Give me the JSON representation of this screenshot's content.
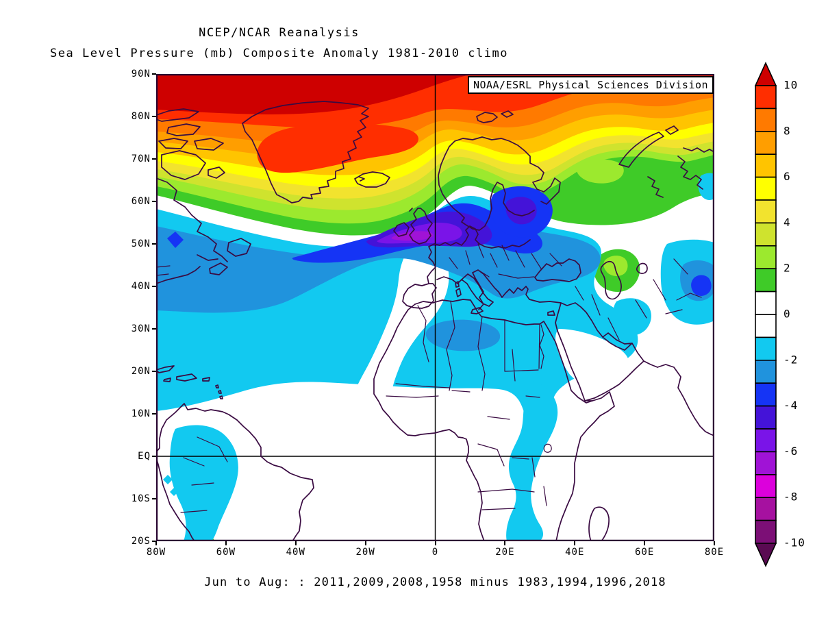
{
  "header": {
    "title": "NCEP/NCAR Reanalysis",
    "subtitle": "Sea Level Pressure (mb) Composite Anomaly 1981-2010 climo"
  },
  "credit_box": {
    "text": "NOAA/ESRL Physical Sciences Division"
  },
  "caption": {
    "text": "Jun to Aug: : 2011,2009,2008,1958 minus 1983,1994,1996,2018"
  },
  "axes": {
    "y_ticks": [
      "90N",
      "80N",
      "70N",
      "60N",
      "50N",
      "40N",
      "30N",
      "20N",
      "10N",
      "EQ",
      "10S",
      "20S"
    ],
    "x_ticks": [
      "80W",
      "60W",
      "40W",
      "20W",
      "0",
      "20E",
      "40E",
      "60E",
      "80E"
    ]
  },
  "colorbar": {
    "labels": [
      "10",
      "8",
      "6",
      "4",
      "2",
      "0",
      "-2",
      "-4",
      "-6",
      "-8",
      "-10"
    ],
    "cell_colors_top_to_bottom": [
      "#FF2E00",
      "#FF7A00",
      "#FF9E00",
      "#FFC400",
      "#FFFF00",
      "#F2E32E",
      "#CFE32E",
      "#9CE92E",
      "#3FCB28",
      "#FFFFFF",
      "#FFFFFF",
      "#12C9F0",
      "#2093DD",
      "#1534F5",
      "#4413D8",
      "#7A14E8",
      "#A013D6",
      "#DC00DC",
      "#A611A0",
      "#7C0F76"
    ],
    "arrow_top_color": "#CE0000",
    "arrow_bottom_color": "#5A0A52"
  },
  "palette": {
    "background": "#FFFFFF",
    "coastline": "#3A0B42",
    "frame": "#2B0833",
    "reference_lines": "#000000"
  },
  "chart_data": {
    "type": "heatmap",
    "subtype": "filled-contour-composite-map",
    "title": "NCEP/NCAR Reanalysis",
    "subtitle": "Sea Level Pressure (mb) Composite Anomaly 1981-2010 climo",
    "variable": "Sea Level Pressure",
    "units": "mb",
    "climatology": "1981-2010",
    "season": "Jun to Aug",
    "composite_plus_years": [
      2011,
      2009,
      2008,
      1958
    ],
    "composite_minus_years": [
      1983,
      1994,
      1996,
      2018
    ],
    "credit": "NOAA/ESRL Physical Sciences Division",
    "lat_range": [
      "20S",
      "90N"
    ],
    "lon_range": [
      "80W",
      "80E"
    ],
    "contour_interval_mb": 1,
    "colorbar_range_mb": [
      -10,
      10
    ],
    "contour_levels_mb": [
      -10,
      -9,
      -8,
      -7,
      -6,
      -5,
      -4,
      -3,
      -2,
      -1,
      0,
      1,
      2,
      3,
      4,
      5,
      6,
      7,
      8,
      9,
      10
    ],
    "grid": false,
    "legend_position": "right-colorbar",
    "features": [
      {
        "region": "Arctic cap north of ~83N",
        "anomaly_mb": "> +10"
      },
      {
        "region": "Greenland interior and Greenland Sea",
        "anomaly_mb": "+9 to +10"
      },
      {
        "region": "Canadian Arctic / Iceland belt",
        "anomaly_mb": "+4 to +8"
      },
      {
        "region": "Northwest Russia near 60-70N 40-65E",
        "anomaly_mb": "+1 to +3"
      },
      {
        "region": "Caspian Sea area",
        "anomaly_mb": "+2 to +3"
      },
      {
        "region": "West of Ireland / British Isles core",
        "anomaly_mb": "-5 to -7"
      },
      {
        "region": "North Sea / southern Scandinavia / Baltic",
        "anomaly_mb": "-3 to -5"
      },
      {
        "region": "North Atlantic 35-55N",
        "anomaly_mb": "-2 to -3"
      },
      {
        "region": "Sahara and central North Africa",
        "anomaly_mb": "-1 to -2"
      },
      {
        "region": "Iberia / Morocco corridor",
        "anomaly_mb": "0 (neutral)"
      },
      {
        "region": "Arabia interior",
        "anomaly_mb": "0 (neutral)"
      },
      {
        "region": "Central Asia ~70E 40N",
        "anomaly_mb": "-2 to -3"
      },
      {
        "region": "East Africa south of equator",
        "anomaly_mb": "-1"
      },
      {
        "region": "Western Amazon / Andes",
        "anomaly_mb": "-1"
      }
    ]
  }
}
